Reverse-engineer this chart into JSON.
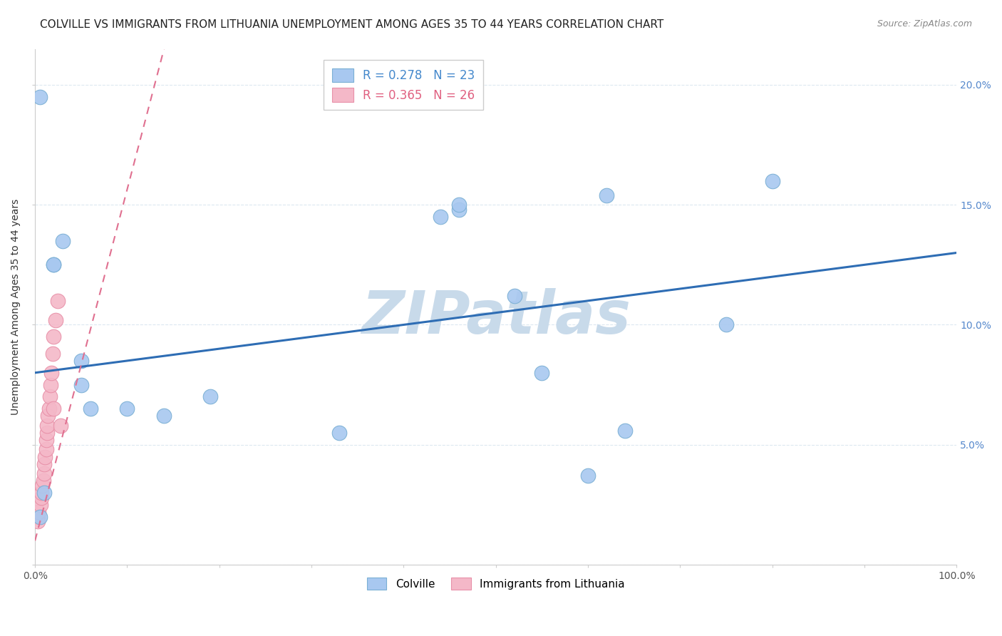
{
  "title": "COLVILLE VS IMMIGRANTS FROM LITHUANIA UNEMPLOYMENT AMONG AGES 35 TO 44 YEARS CORRELATION CHART",
  "source": "Source: ZipAtlas.com",
  "ylabel": "Unemployment Among Ages 35 to 44 years",
  "xlim": [
    0.0,
    1.0
  ],
  "ylim": [
    0.0,
    0.215
  ],
  "ytick_positions": [
    0.0,
    0.05,
    0.1,
    0.15,
    0.2
  ],
  "ytick_labels": [
    "",
    "5.0%",
    "10.0%",
    "15.0%",
    "20.0%"
  ],
  "xtick_positions": [
    0.0,
    0.1,
    0.2,
    0.3,
    0.4,
    0.5,
    0.6,
    0.7,
    0.8,
    0.9,
    1.0
  ],
  "xtick_labels": [
    "0.0%",
    "",
    "",
    "",
    "",
    "",
    "",
    "",
    "",
    "",
    "100.0%"
  ],
  "colville_x": [
    0.005,
    0.02,
    0.02,
    0.03,
    0.05,
    0.05,
    0.06,
    0.1,
    0.14,
    0.19,
    0.33,
    0.44,
    0.46,
    0.46,
    0.52,
    0.55,
    0.6,
    0.64,
    0.75,
    0.8,
    0.01,
    0.62,
    0.005
  ],
  "colville_y": [
    0.195,
    0.125,
    0.125,
    0.135,
    0.085,
    0.075,
    0.065,
    0.065,
    0.062,
    0.07,
    0.055,
    0.145,
    0.148,
    0.15,
    0.112,
    0.08,
    0.037,
    0.056,
    0.1,
    0.16,
    0.03,
    0.154,
    0.02
  ],
  "lithuania_x": [
    0.003,
    0.003,
    0.004,
    0.006,
    0.007,
    0.007,
    0.008,
    0.009,
    0.01,
    0.01,
    0.011,
    0.012,
    0.012,
    0.013,
    0.013,
    0.014,
    0.015,
    0.016,
    0.017,
    0.018,
    0.019,
    0.02,
    0.02,
    0.022,
    0.025,
    0.028
  ],
  "lithuania_y": [
    0.02,
    0.018,
    0.022,
    0.025,
    0.028,
    0.03,
    0.033,
    0.035,
    0.038,
    0.042,
    0.045,
    0.048,
    0.052,
    0.055,
    0.058,
    0.062,
    0.065,
    0.07,
    0.075,
    0.08,
    0.088,
    0.095,
    0.065,
    0.102,
    0.11,
    0.058
  ],
  "colville_color": "#a8c8f0",
  "colville_edge_color": "#7aafd4",
  "lithuania_color": "#f4b8c8",
  "lithuania_edge_color": "#e890a8",
  "blue_line_color": "#2e6db4",
  "pink_line_color": "#e07090",
  "blue_line_start_x": 0.0,
  "blue_line_start_y": 0.08,
  "blue_line_end_x": 1.0,
  "blue_line_end_y": 0.13,
  "pink_line_start_x": 0.0,
  "pink_line_start_y": 0.01,
  "pink_line_end_x": 0.14,
  "pink_line_end_y": 0.215,
  "R_colville": 0.278,
  "N_colville": 23,
  "R_lithuania": 0.365,
  "N_lithuania": 26,
  "colville_legend_label": "Colville",
  "lithuania_legend_label": "Immigrants from Lithuania",
  "watermark": "ZIPatlas",
  "watermark_color": "#c8daea",
  "background_color": "#ffffff",
  "grid_color": "#dce8f0",
  "title_fontsize": 11,
  "axis_label_fontsize": 10,
  "tick_fontsize": 10,
  "source_fontsize": 9,
  "legend_fontsize": 12
}
